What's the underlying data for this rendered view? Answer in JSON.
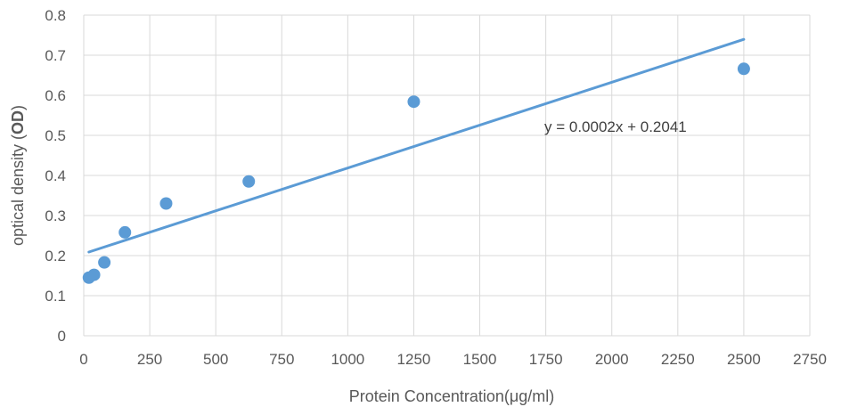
{
  "chart_data": {
    "type": "scatter",
    "title": "",
    "xlabel": "Protein Concentration(μg/ml)",
    "ylabel_parts": [
      "optical density (",
      "OD",
      ")"
    ],
    "xlim": [
      0,
      2750
    ],
    "ylim": [
      0,
      0.8
    ],
    "xticks": [
      "0",
      "250",
      "500",
      "750",
      "1000",
      "1250",
      "1500",
      "1750",
      "2000",
      "2250",
      "2500",
      "2750"
    ],
    "yticks": [
      "0",
      "0.1",
      "0.2",
      "0.3",
      "0.4",
      "0.5",
      "0.6",
      "0.7",
      "0.8"
    ],
    "grid": true,
    "points": [
      {
        "x": 19.5,
        "y": 0.145
      },
      {
        "x": 39,
        "y": 0.152
      },
      {
        "x": 78,
        "y": 0.183
      },
      {
        "x": 156,
        "y": 0.258
      },
      {
        "x": 312,
        "y": 0.33
      },
      {
        "x": 625,
        "y": 0.385
      },
      {
        "x": 1250,
        "y": 0.584
      },
      {
        "x": 2500,
        "y": 0.666
      }
    ],
    "trendline": {
      "type": "linear",
      "x_range": [
        19.5,
        2500
      ],
      "label": "y = 0.0002x + 0.2041"
    },
    "colors": {
      "series": "#5b9bd5",
      "grid": "#d9d9d9",
      "text": "#595959"
    }
  }
}
